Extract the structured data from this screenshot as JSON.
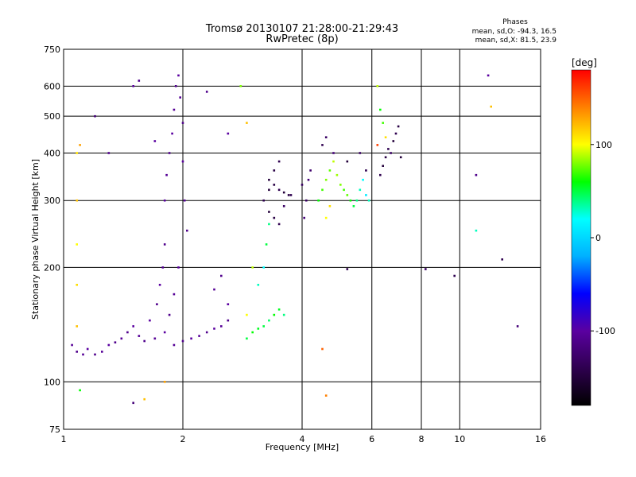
{
  "header": {
    "title_line1": "Tromsø 20130107 21:28:00-21:29:43",
    "title_line2": "RwPretec (8p)"
  },
  "stats": {
    "heading": "Phases",
    "line_o": "mean, sd,O: -94.3, 16.5",
    "line_x": "mean, sd,X:  81.5, 23.9"
  },
  "colorbar": {
    "label": "[deg]",
    "range": [
      -180,
      180
    ],
    "ticks": [
      {
        "value": 100,
        "label": "100"
      },
      {
        "value": 0,
        "label": "0"
      },
      {
        "value": -100,
        "label": "-100"
      }
    ],
    "colors": [
      "#000000",
      "#2e004f",
      "#5a00a0",
      "#0000ff",
      "#00b0ff",
      "#00ffff",
      "#00ff00",
      "#ffff00",
      "#ff8000",
      "#ff0000"
    ]
  },
  "chart_data": {
    "type": "scatter",
    "xlabel": "Frequency [MHz]",
    "ylabel": "Stationary phase Virtual Height [km]",
    "x_scale": "log",
    "y_scale": "log",
    "xlim": [
      1,
      16
    ],
    "ylim": [
      75,
      750
    ],
    "grid": true,
    "x_ticks": [
      {
        "value": 1,
        "label": "1"
      },
      {
        "value": 2,
        "label": "2"
      },
      {
        "value": 4,
        "label": "4"
      },
      {
        "value": 6,
        "label": "6"
      },
      {
        "value": 8,
        "label": "8"
      },
      {
        "value": 10,
        "label": "10"
      },
      {
        "value": 16,
        "label": "16"
      }
    ],
    "y_ticks": [
      {
        "value": 75,
        "label": "75"
      },
      {
        "value": 100,
        "label": "100"
      },
      {
        "value": 200,
        "label": "200"
      },
      {
        "value": 300,
        "label": "300"
      },
      {
        "value": 400,
        "label": "400"
      },
      {
        "value": 500,
        "label": "500"
      },
      {
        "value": 600,
        "label": "600"
      },
      {
        "value": 750,
        "label": "750"
      }
    ],
    "value_label": "Phase [deg]",
    "points": [
      [
        1.05,
        125,
        -105
      ],
      [
        1.08,
        120,
        -110
      ],
      [
        1.12,
        118,
        -105
      ],
      [
        1.15,
        122,
        -100
      ],
      [
        1.2,
        118,
        -110
      ],
      [
        1.25,
        120,
        -105
      ],
      [
        1.3,
        125,
        -100
      ],
      [
        1.35,
        127,
        -110
      ],
      [
        1.4,
        130,
        -105
      ],
      [
        1.45,
        135,
        -110
      ],
      [
        1.5,
        140,
        -100
      ],
      [
        1.55,
        132,
        -105
      ],
      [
        1.6,
        128,
        -110
      ],
      [
        1.65,
        145,
        -100
      ],
      [
        1.7,
        130,
        -105
      ],
      [
        1.72,
        160,
        -110
      ],
      [
        1.75,
        180,
        -100
      ],
      [
        1.78,
        200,
        -105
      ],
      [
        1.8,
        230,
        -110
      ],
      [
        1.8,
        300,
        -100
      ],
      [
        1.82,
        350,
        -105
      ],
      [
        1.85,
        400,
        -110
      ],
      [
        1.88,
        450,
        -100
      ],
      [
        1.9,
        520,
        -105
      ],
      [
        1.92,
        600,
        -110
      ],
      [
        1.95,
        640,
        -100
      ],
      [
        1.97,
        560,
        -105
      ],
      [
        2.0,
        480,
        -110
      ],
      [
        2.0,
        380,
        -100
      ],
      [
        2.02,
        300,
        -105
      ],
      [
        2.05,
        250,
        -110
      ],
      [
        1.95,
        200,
        -100
      ],
      [
        1.9,
        170,
        -105
      ],
      [
        1.85,
        150,
        -110
      ],
      [
        1.8,
        135,
        -100
      ],
      [
        1.9,
        125,
        -105
      ],
      [
        2.0,
        128,
        -110
      ],
      [
        2.1,
        130,
        -100
      ],
      [
        2.2,
        132,
        -105
      ],
      [
        2.3,
        135,
        -110
      ],
      [
        2.4,
        138,
        -100
      ],
      [
        2.5,
        140,
        -105
      ],
      [
        2.6,
        145,
        -110
      ],
      [
        2.6,
        160,
        -100
      ],
      [
        2.4,
        175,
        -105
      ],
      [
        2.5,
        190,
        -110
      ],
      [
        2.9,
        130,
        50
      ],
      [
        3.0,
        135,
        60
      ],
      [
        3.1,
        138,
        55
      ],
      [
        3.2,
        140,
        50
      ],
      [
        3.3,
        145,
        45
      ],
      [
        3.4,
        150,
        60
      ],
      [
        3.5,
        155,
        55
      ],
      [
        3.6,
        150,
        40
      ],
      [
        3.1,
        180,
        30
      ],
      [
        3.2,
        200,
        20
      ],
      [
        3.25,
        230,
        50
      ],
      [
        3.3,
        260,
        40
      ],
      [
        3.0,
        200,
        90
      ],
      [
        2.9,
        150,
        100
      ],
      [
        3.2,
        300,
        -140
      ],
      [
        3.3,
        320,
        -150
      ],
      [
        3.4,
        330,
        -145
      ],
      [
        3.5,
        320,
        -140
      ],
      [
        3.6,
        315,
        -150
      ],
      [
        3.7,
        310,
        -145
      ],
      [
        3.75,
        310,
        -140
      ],
      [
        3.3,
        340,
        -150
      ],
      [
        3.4,
        360,
        -145
      ],
      [
        3.5,
        380,
        -140
      ],
      [
        3.3,
        280,
        -150
      ],
      [
        3.4,
        270,
        -145
      ],
      [
        3.5,
        260,
        -140
      ],
      [
        3.6,
        290,
        -130
      ],
      [
        4.05,
        270,
        -120
      ],
      [
        4.1,
        300,
        -130
      ],
      [
        4.15,
        340,
        -120
      ],
      [
        4.2,
        360,
        -125
      ],
      [
        4.0,
        330,
        -130
      ],
      [
        4.4,
        300,
        60
      ],
      [
        4.5,
        320,
        70
      ],
      [
        4.6,
        340,
        80
      ],
      [
        4.7,
        360,
        75
      ],
      [
        4.8,
        380,
        90
      ],
      [
        4.9,
        350,
        85
      ],
      [
        5.0,
        330,
        80
      ],
      [
        5.1,
        320,
        70
      ],
      [
        5.2,
        310,
        75
      ],
      [
        5.3,
        300,
        60
      ],
      [
        5.4,
        290,
        50
      ],
      [
        5.5,
        300,
        40
      ],
      [
        5.6,
        320,
        30
      ],
      [
        5.7,
        340,
        20
      ],
      [
        5.8,
        310,
        10
      ],
      [
        5.9,
        300,
        30
      ],
      [
        4.6,
        270,
        100
      ],
      [
        4.7,
        290,
        110
      ],
      [
        4.5,
        420,
        -140
      ],
      [
        4.6,
        440,
        -130
      ],
      [
        4.8,
        400,
        -120
      ],
      [
        5.2,
        380,
        -150
      ],
      [
        5.6,
        400,
        -130
      ],
      [
        5.8,
        360,
        -140
      ],
      [
        6.3,
        350,
        -140
      ],
      [
        6.4,
        370,
        -150
      ],
      [
        6.5,
        390,
        -145
      ],
      [
        6.6,
        410,
        -140
      ],
      [
        6.7,
        400,
        -130
      ],
      [
        6.8,
        430,
        -150
      ],
      [
        6.9,
        450,
        -140
      ],
      [
        7.0,
        470,
        -145
      ],
      [
        7.1,
        390,
        -150
      ],
      [
        6.4,
        480,
        70
      ],
      [
        6.3,
        520,
        60
      ],
      [
        6.5,
        440,
        110
      ],
      [
        6.2,
        600,
        90
      ],
      [
        1.08,
        140,
        120
      ],
      [
        1.08,
        180,
        110
      ],
      [
        1.08,
        230,
        100
      ],
      [
        1.08,
        300,
        120
      ],
      [
        1.08,
        400,
        110
      ],
      [
        1.1,
        420,
        130
      ],
      [
        1.2,
        500,
        -120
      ],
      [
        1.3,
        400,
        -110
      ],
      [
        1.5,
        600,
        -100
      ],
      [
        1.55,
        620,
        -110
      ],
      [
        1.7,
        430,
        -100
      ],
      [
        2.3,
        580,
        -110
      ],
      [
        2.6,
        450,
        -100
      ],
      [
        2.9,
        480,
        120
      ],
      [
        2.8,
        600,
        80
      ],
      [
        1.1,
        95,
        60
      ],
      [
        1.5,
        88,
        -120
      ],
      [
        1.6,
        90,
        120
      ],
      [
        1.8,
        100,
        130
      ],
      [
        4.5,
        122,
        150
      ],
      [
        4.6,
        92,
        140
      ],
      [
        8.2,
        198,
        -130
      ],
      [
        9.7,
        190,
        -140
      ],
      [
        11,
        350,
        -110
      ],
      [
        11.8,
        640,
        -100
      ],
      [
        12,
        530,
        120
      ],
      [
        11,
        250,
        30
      ],
      [
        12.8,
        210,
        -140
      ],
      [
        14,
        140,
        -120
      ],
      [
        6.2,
        420,
        160
      ],
      [
        5.2,
        198,
        -140
      ]
    ]
  }
}
